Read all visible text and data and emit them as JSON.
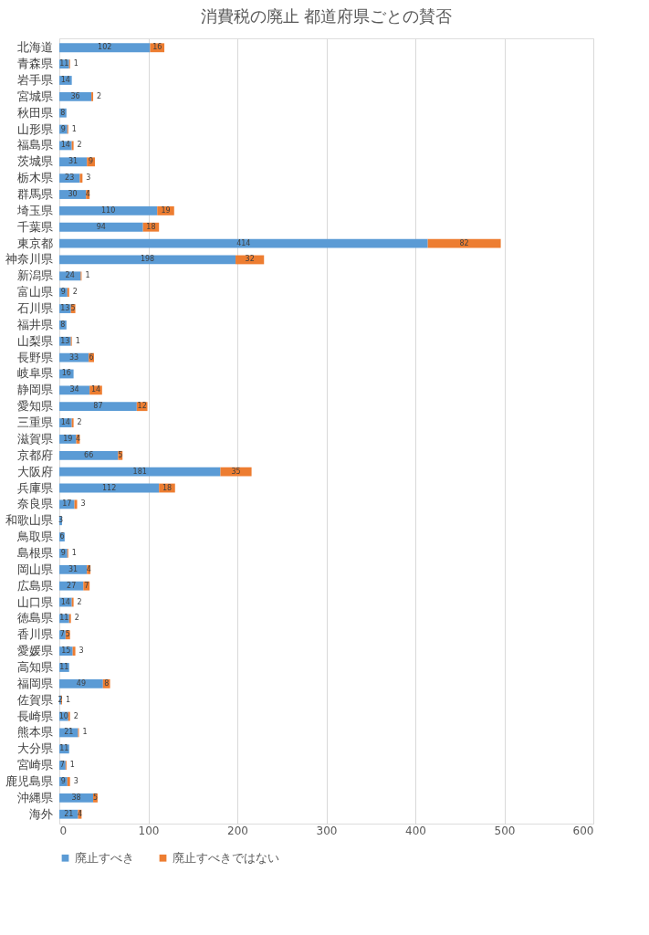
{
  "chart_data": {
    "type": "bar",
    "orientation": "horizontal",
    "stacked": true,
    "title": "消費税の廃止 都道府県ごとの賛否",
    "categories": [
      "北海道",
      "青森県",
      "岩手県",
      "宮城県",
      "秋田県",
      "山形県",
      "福島県",
      "茨城県",
      "栃木県",
      "群馬県",
      "埼玉県",
      "千葉県",
      "東京都",
      "神奈川県",
      "新潟県",
      "富山県",
      "石川県",
      "福井県",
      "山梨県",
      "長野県",
      "岐阜県",
      "静岡県",
      "愛知県",
      "三重県",
      "滋賀県",
      "京都府",
      "大阪府",
      "兵庫県",
      "奈良県",
      "和歌山県",
      "鳥取県",
      "島根県",
      "岡山県",
      "広島県",
      "山口県",
      "徳島県",
      "香川県",
      "愛媛県",
      "高知県",
      "福岡県",
      "佐賀県",
      "長崎県",
      "熊本県",
      "大分県",
      "宮崎県",
      "鹿児島県",
      "沖縄県",
      "海外"
    ],
    "series": [
      {
        "name": "廃止すべき",
        "color": "#5b9bd5",
        "values": [
          102,
          11,
          14,
          36,
          8,
          9,
          14,
          31,
          23,
          30,
          110,
          94,
          414,
          198,
          24,
          9,
          13,
          8,
          13,
          33,
          16,
          34,
          87,
          14,
          19,
          66,
          181,
          112,
          17,
          3,
          6,
          9,
          31,
          27,
          14,
          11,
          7,
          15,
          11,
          49,
          2,
          10,
          21,
          11,
          7,
          9,
          38,
          21
        ]
      },
      {
        "name": "廃止すべきではない",
        "color": "#ed7d31",
        "values": [
          16,
          1,
          null,
          2,
          null,
          1,
          2,
          9,
          3,
          4,
          19,
          18,
          82,
          32,
          1,
          2,
          5,
          null,
          1,
          6,
          null,
          14,
          12,
          2,
          4,
          5,
          35,
          18,
          3,
          null,
          null,
          1,
          4,
          7,
          2,
          2,
          5,
          3,
          null,
          8,
          1,
          2,
          1,
          null,
          1,
          3,
          5,
          4
        ]
      }
    ],
    "xlim": [
      0,
      600
    ],
    "xticks": [
      0,
      100,
      200,
      300,
      400,
      500,
      600
    ],
    "grid": "x",
    "legend": "bottom",
    "data_labels": true
  }
}
